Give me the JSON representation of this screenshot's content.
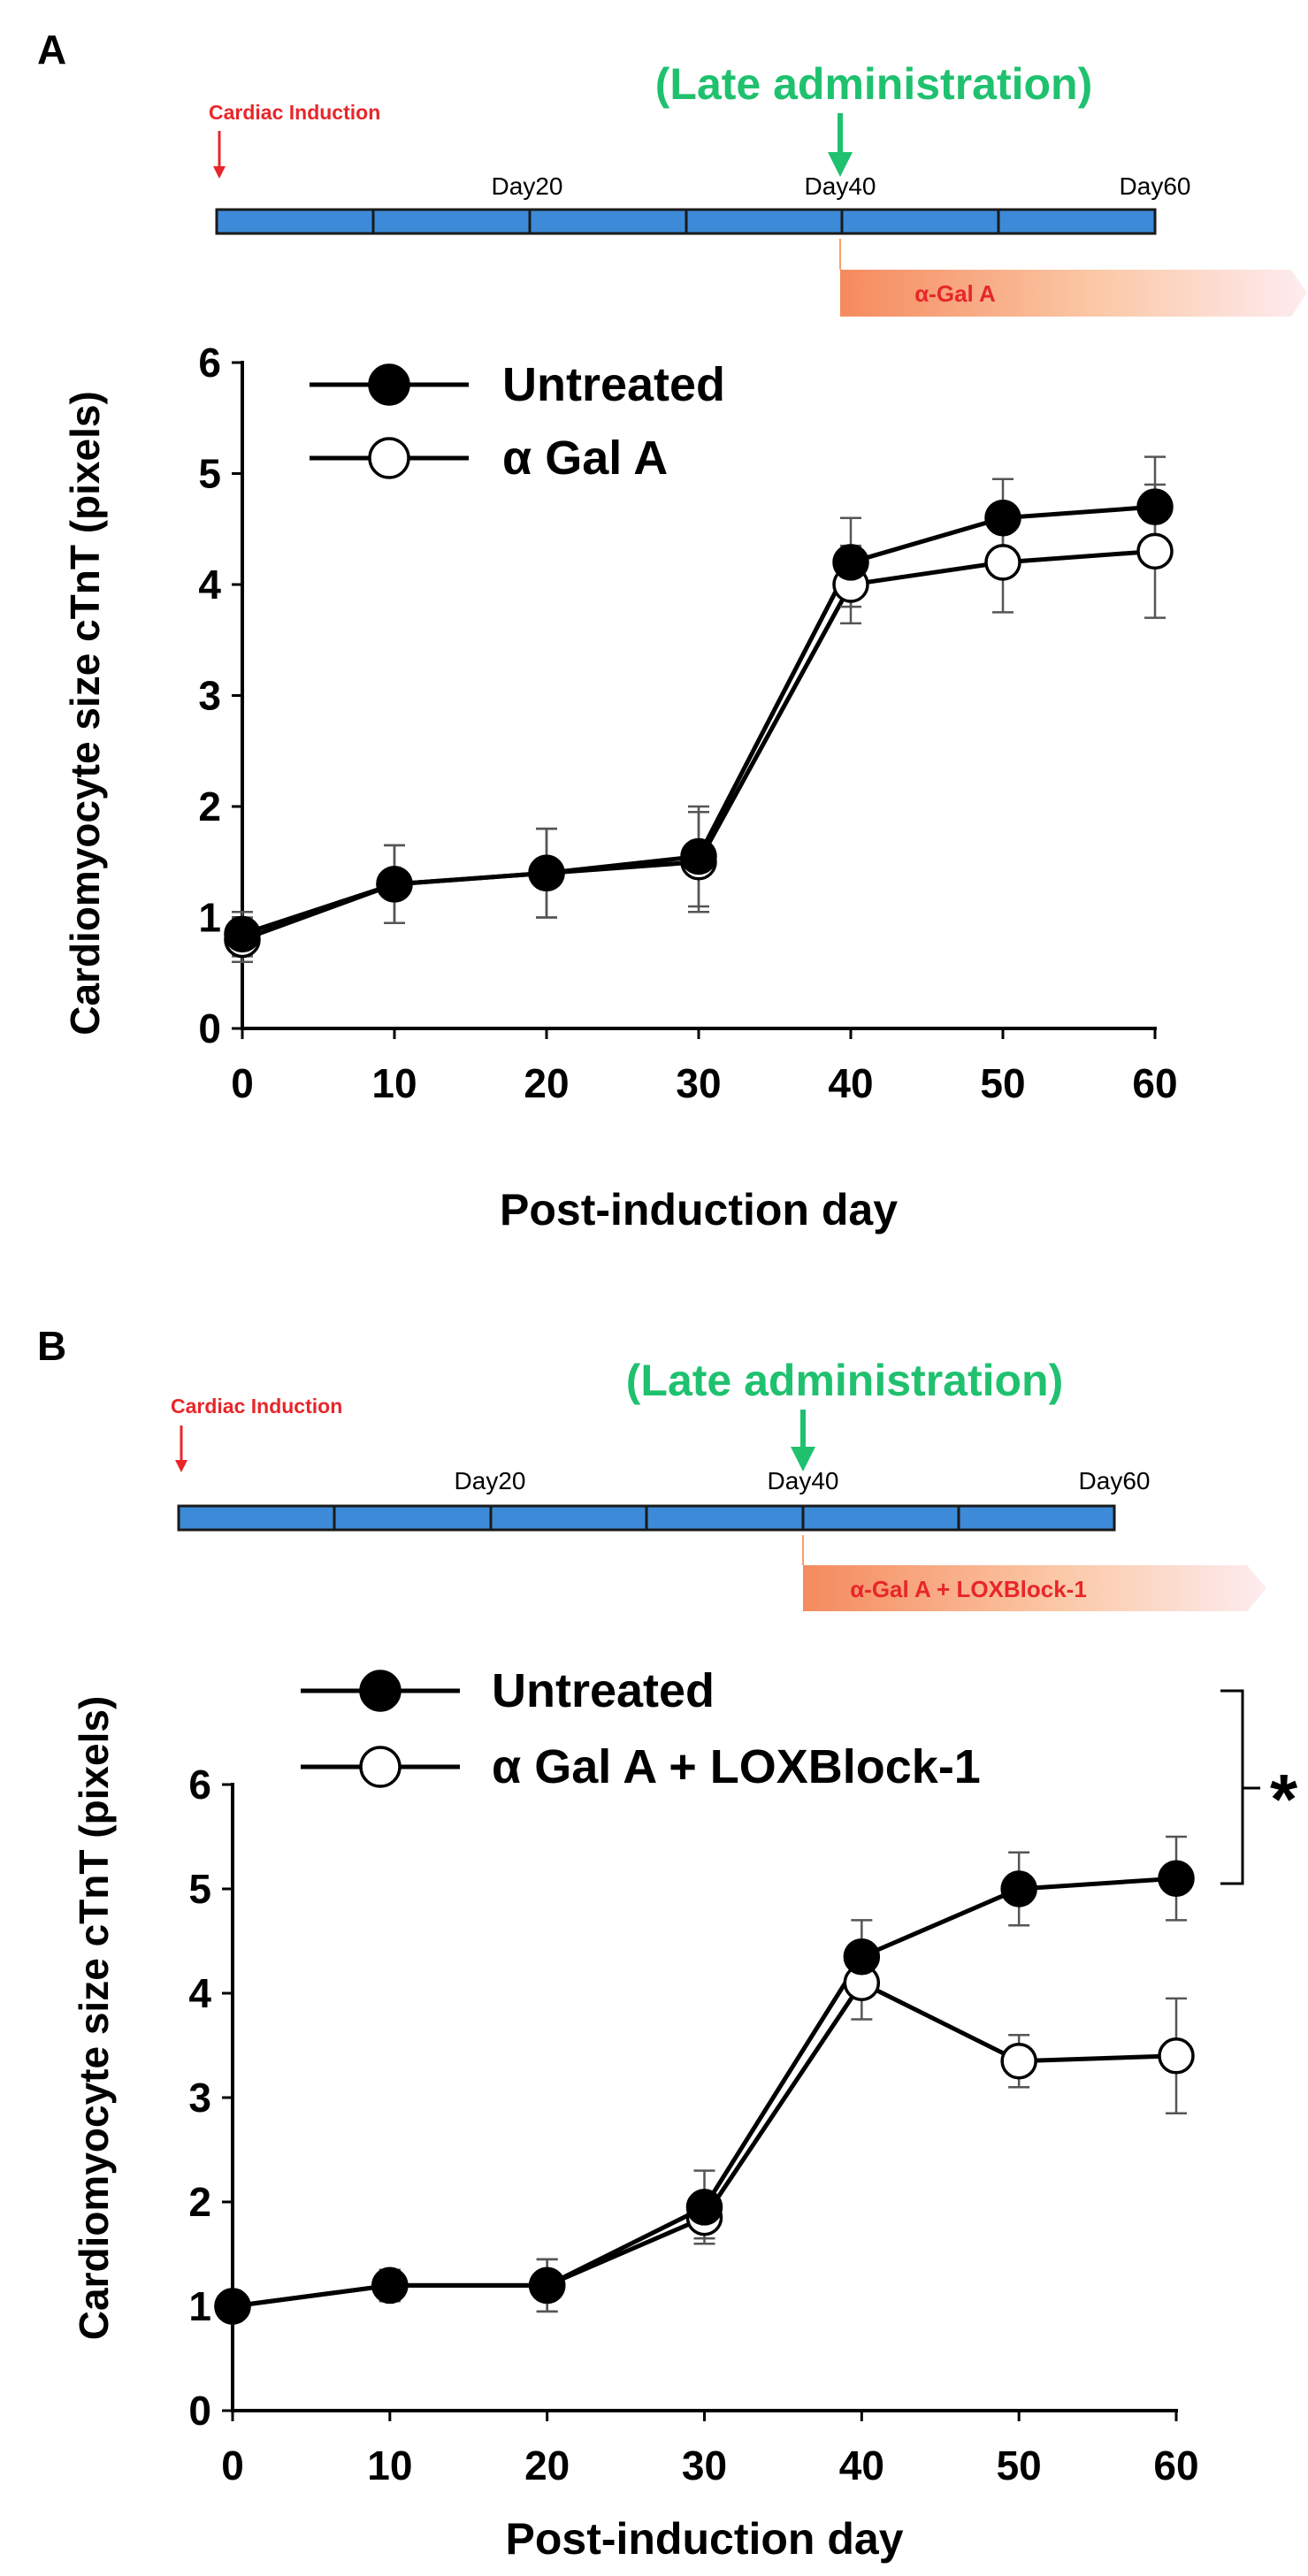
{
  "colors": {
    "timeline_bar": "#3d8ad8",
    "timeline_border": "#1a1a1a",
    "induction_red": "#e8262a",
    "late_green": "#1fc16f",
    "treat_band_start": "#f58a5e",
    "treat_band_end": "#fbe4d8",
    "series_black": "#000000"
  },
  "panels": [
    {
      "panel_label": "A",
      "timeline": {
        "induction_label": "Cardiac Induction",
        "late_label": "(Late administration)",
        "day_labels": [
          "Day20",
          "Day40",
          "Day60"
        ],
        "treatment_label": "α-Gal A"
      },
      "axes": {
        "ylabel": "Cardiomyocyte size cTnT (pixels)",
        "xlabel": "Post-induction day",
        "xticks": [
          "0",
          "10",
          "20",
          "30",
          "40",
          "50",
          "60"
        ],
        "yticks": [
          "0",
          "1",
          "2",
          "3",
          "4",
          "5",
          "6"
        ]
      },
      "legend": [
        "Untreated",
        "α Gal A"
      ],
      "significance": ""
    },
    {
      "panel_label": "B",
      "timeline": {
        "induction_label": "Cardiac Induction",
        "late_label": "(Late administration)",
        "day_labels": [
          "Day20",
          "Day40",
          "Day60"
        ],
        "treatment_label": "α-Gal A + LOXBlock-1"
      },
      "axes": {
        "ylabel": "Cardiomyocyte size cTnT (pixels)",
        "xlabel": "Post-induction day",
        "xticks": [
          "0",
          "10",
          "20",
          "30",
          "40",
          "50",
          "60"
        ],
        "yticks": [
          "0",
          "1",
          "2",
          "3",
          "4",
          "5",
          "6"
        ]
      },
      "legend": [
        "Untreated",
        "α Gal A + LOXBlock-1"
      ],
      "significance": "*"
    }
  ],
  "chart_data": [
    {
      "type": "line",
      "title": "A",
      "xlabel": "Post-induction day",
      "ylabel": "Cardiomyocyte size cTnT (pixels)",
      "x": [
        0,
        10,
        20,
        30,
        40,
        50,
        60
      ],
      "xlim": [
        0,
        60
      ],
      "ylim": [
        0,
        6
      ],
      "series": [
        {
          "name": "Untreated",
          "marker": "filled",
          "values": [
            0.85,
            1.3,
            1.4,
            1.55,
            4.2,
            4.6,
            4.7
          ],
          "errors": [
            0.2,
            0.35,
            0.4,
            0.45,
            0.4,
            0.35,
            0.45
          ]
        },
        {
          "name": "α Gal A",
          "marker": "open",
          "values": [
            0.8,
            1.3,
            1.4,
            1.5,
            4.0,
            4.2,
            4.3
          ],
          "errors": [
            0.2,
            0.35,
            0.4,
            0.45,
            0.35,
            0.45,
            0.6
          ]
        }
      ]
    },
    {
      "type": "line",
      "title": "B",
      "xlabel": "Post-induction day",
      "ylabel": "Cardiomyocyte size cTnT (pixels)",
      "x": [
        0,
        10,
        20,
        30,
        40,
        50,
        60
      ],
      "xlim": [
        0,
        60
      ],
      "ylim": [
        0,
        6
      ],
      "series": [
        {
          "name": "Untreated",
          "marker": "filled",
          "values": [
            1.0,
            1.2,
            1.2,
            1.95,
            4.35,
            5.0,
            5.1
          ],
          "errors": [
            0.1,
            0.15,
            0.25,
            0.35,
            0.35,
            0.35,
            0.4
          ]
        },
        {
          "name": "α Gal A + LOXBlock-1",
          "marker": "open",
          "values": [
            1.0,
            1.2,
            1.2,
            1.85,
            4.1,
            3.35,
            3.4
          ],
          "errors": [
            0.1,
            0.15,
            0.25,
            0.2,
            0.35,
            0.25,
            0.55
          ]
        }
      ]
    }
  ]
}
